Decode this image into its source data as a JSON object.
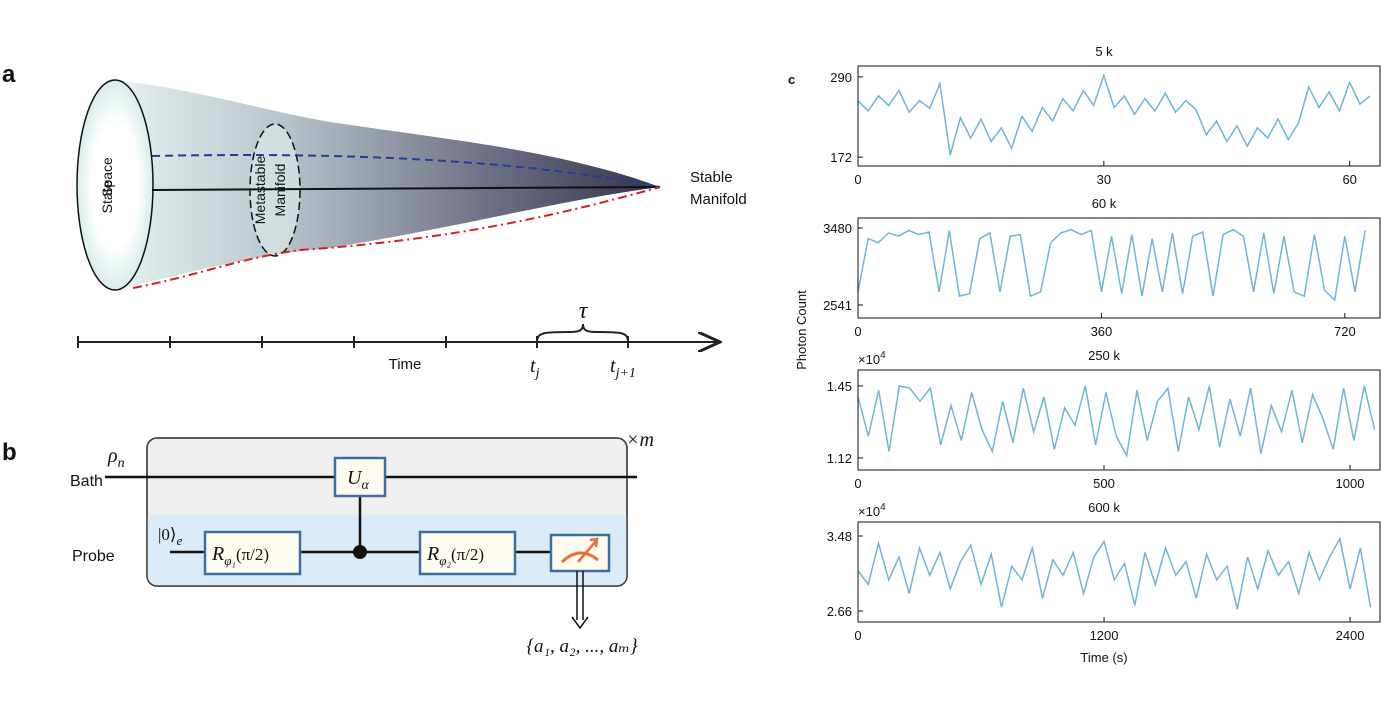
{
  "panel_a": {
    "label": "a",
    "state_space": [
      "State",
      "Space"
    ],
    "metastable": [
      "Metastable",
      "Manifold"
    ],
    "stable": [
      "Stable",
      "Manifold"
    ],
    "time": "Time",
    "tau": "τ",
    "tj": {
      "base": "t",
      "sub": "j"
    },
    "tj1": {
      "base": "t",
      "sub": "j+1"
    }
  },
  "panel_b": {
    "label": "b",
    "bath": "Bath",
    "probe": "Probe",
    "rho": {
      "base": "ρ",
      "sub": "n"
    },
    "repeat": "×m",
    "ket": {
      "base": "|0⟩",
      "sub": "e"
    },
    "u_gate": {
      "base": "U",
      "sub": "α"
    },
    "r1": {
      "base": "R",
      "sub": "φ₁",
      "arg": "(π/2)"
    },
    "r2": {
      "base": "R",
      "sub": "φ₂",
      "arg": "(π/2)"
    },
    "outcome": "{a₁, a₂, ..., aₘ}"
  },
  "panel_c": {
    "label": "c",
    "ylabel": "Photon Count",
    "xlabel": "Time (s)"
  },
  "chart_data": [
    {
      "type": "line",
      "title": "5 k",
      "color": "#6db6d5",
      "xlim": [
        0,
        63.7
      ],
      "ylim": [
        159,
        306
      ],
      "xticks": [
        0,
        30,
        60
      ],
      "yticks": [
        172,
        290
      ],
      "x": [
        0,
        1.25,
        2.5,
        3.75,
        5,
        6.25,
        7.5,
        8.75,
        10,
        11.25,
        12.5,
        13.75,
        15,
        16.25,
        17.5,
        18.75,
        20,
        21.25,
        22.5,
        23.75,
        25,
        26.25,
        27.5,
        28.75,
        30,
        31.25,
        32.5,
        33.75,
        35,
        36.25,
        37.5,
        38.75,
        40,
        41.25,
        42.5,
        43.75,
        45,
        46.25,
        47.5,
        48.75,
        50,
        51.25,
        52.5,
        53.75,
        55,
        56.25,
        57.5,
        58.75,
        60,
        61.25,
        62.5
      ],
      "values": [
        255,
        240,
        262,
        248,
        270,
        238,
        255,
        244,
        280,
        175,
        230,
        200,
        228,
        195,
        215,
        185,
        232,
        210,
        245,
        225,
        258,
        240,
        270,
        248,
        292,
        245,
        262,
        235,
        258,
        240,
        266,
        238,
        255,
        242,
        205,
        225,
        195,
        218,
        188,
        215,
        200,
        228,
        198,
        222,
        275,
        245,
        268,
        240,
        282,
        250,
        262
      ]
    },
    {
      "type": "line",
      "title": "60 k",
      "color": "#6db6d5",
      "xlim": [
        0,
        772
      ],
      "ylim": [
        2382,
        3602
      ],
      "xticks": [
        0,
        360,
        720
      ],
      "yticks": [
        2541,
        3480
      ],
      "x": [
        0,
        15,
        30,
        45,
        60,
        75,
        90,
        105,
        120,
        135,
        150,
        165,
        180,
        195,
        210,
        225,
        240,
        255,
        270,
        285,
        300,
        315,
        330,
        345,
        360,
        375,
        390,
        405,
        420,
        435,
        450,
        465,
        480,
        495,
        510,
        525,
        540,
        555,
        570,
        585,
        600,
        615,
        630,
        645,
        660,
        675,
        690,
        705,
        720,
        735,
        750
      ],
      "values": [
        2700,
        3350,
        3300,
        3420,
        3380,
        3450,
        3400,
        3430,
        2700,
        3450,
        2650,
        2680,
        3350,
        3420,
        2700,
        3380,
        3400,
        2650,
        2700,
        3300,
        3420,
        3460,
        3400,
        3450,
        2700,
        3380,
        2680,
        3400,
        2650,
        3350,
        2700,
        3420,
        2680,
        3380,
        3430,
        2650,
        3400,
        3460,
        3380,
        2700,
        3420,
        2680,
        3380,
        2700,
        2650,
        3400,
        2720,
        2600,
        3380,
        2700,
        3450
      ]
    },
    {
      "type": "line",
      "title": "250 k",
      "exponent": {
        "base": "×10",
        "sup": "4"
      },
      "color": "#6db6d5",
      "xlim": [
        0,
        1061
      ],
      "ylim": [
        1.065,
        1.523
      ],
      "xticks": [
        0,
        500,
        1000
      ],
      "yticks": [
        1.12,
        1.45
      ],
      "x": [
        0,
        21,
        42,
        63,
        84,
        105,
        126,
        147,
        168,
        189,
        210,
        231,
        252,
        273,
        294,
        315,
        336,
        357,
        378,
        399,
        420,
        441,
        462,
        483,
        504,
        525,
        546,
        567,
        588,
        609,
        630,
        651,
        672,
        693,
        714,
        735,
        756,
        777,
        798,
        819,
        840,
        861,
        882,
        903,
        924,
        945,
        966,
        987,
        1008,
        1029,
        1050
      ],
      "values": [
        1.4,
        1.22,
        1.43,
        1.15,
        1.45,
        1.44,
        1.38,
        1.44,
        1.18,
        1.36,
        1.2,
        1.42,
        1.25,
        1.15,
        1.38,
        1.19,
        1.44,
        1.24,
        1.4,
        1.16,
        1.35,
        1.27,
        1.45,
        1.18,
        1.42,
        1.22,
        1.13,
        1.43,
        1.2,
        1.38,
        1.44,
        1.15,
        1.4,
        1.25,
        1.45,
        1.17,
        1.39,
        1.22,
        1.44,
        1.14,
        1.36,
        1.24,
        1.43,
        1.19,
        1.41,
        1.3,
        1.16,
        1.44,
        1.2,
        1.45,
        1.25
      ]
    },
    {
      "type": "line",
      "title": "600 k",
      "exponent": {
        "base": "×10",
        "sup": "4"
      },
      "color": "#6db6d5",
      "xlim": [
        0,
        2546
      ],
      "ylim": [
        2.54,
        3.633
      ],
      "xticks": [
        0,
        1200,
        2400
      ],
      "yticks": [
        2.66,
        3.48
      ],
      "x": [
        0,
        50,
        100,
        150,
        200,
        250,
        300,
        350,
        400,
        450,
        500,
        550,
        600,
        650,
        700,
        750,
        800,
        850,
        900,
        950,
        1000,
        1050,
        1100,
        1150,
        1200,
        1250,
        1300,
        1350,
        1400,
        1450,
        1500,
        1550,
        1600,
        1650,
        1700,
        1750,
        1800,
        1850,
        1900,
        1950,
        2000,
        2050,
        2100,
        2150,
        2200,
        2250,
        2300,
        2350,
        2400,
        2450,
        2500
      ],
      "values": [
        3.1,
        2.95,
        3.4,
        3.0,
        3.25,
        2.85,
        3.35,
        3.05,
        3.3,
        2.9,
        3.2,
        3.38,
        2.95,
        3.28,
        2.7,
        3.15,
        3.0,
        3.35,
        2.8,
        3.22,
        3.05,
        3.3,
        2.85,
        3.25,
        3.42,
        3.0,
        3.18,
        2.72,
        3.3,
        2.95,
        3.35,
        3.05,
        3.2,
        2.8,
        3.28,
        3.0,
        3.15,
        2.68,
        3.25,
        2.9,
        3.32,
        3.05,
        3.2,
        2.85,
        3.3,
        3.0,
        3.25,
        3.45,
        2.9,
        3.35,
        2.7
      ]
    }
  ]
}
